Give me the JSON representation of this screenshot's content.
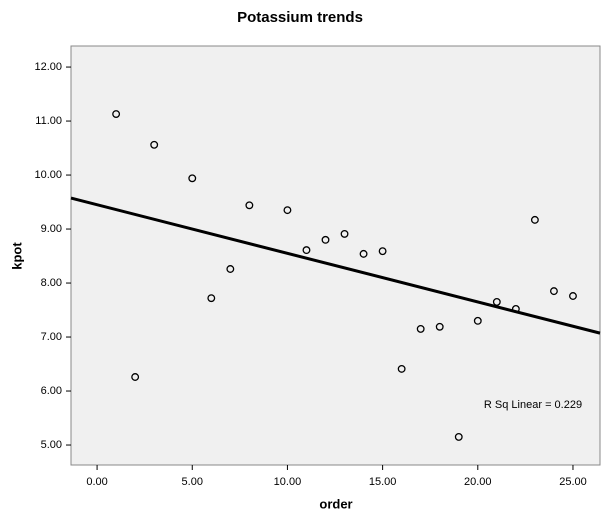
{
  "chart_data": {
    "type": "scatter",
    "title": "Potassium trends",
    "x_label": "order",
    "y_label": "kpot",
    "x": [
      1,
      2,
      3,
      5,
      6,
      7,
      8,
      10,
      11,
      12,
      13,
      14,
      15,
      16,
      17,
      18,
      19,
      20,
      21,
      22,
      23,
      24,
      25
    ],
    "values": [
      11.13,
      6.26,
      10.56,
      9.94,
      7.72,
      8.26,
      9.44,
      9.35,
      8.61,
      8.8,
      8.91,
      8.54,
      8.59,
      6.41,
      7.15,
      7.19,
      5.15,
      7.3,
      7.65,
      7.52,
      9.17,
      7.85,
      7.76
    ],
    "color": "#000000",
    "fit": {
      "slope": -0.09,
      "intercept": 9.45
    },
    "annotation": "R Sq Linear = 0.229",
    "xlim": [
      -1.37,
      26.42
    ],
    "ylim": [
      4.63,
      12.39
    ],
    "xticks": [
      {
        "value": 0,
        "label": "0.00"
      },
      {
        "value": 5,
        "label": "5.00"
      },
      {
        "value": 10,
        "label": "10.00"
      },
      {
        "value": 15,
        "label": "15.00"
      },
      {
        "value": 20,
        "label": "20.00"
      },
      {
        "value": 25,
        "label": "25.00"
      }
    ],
    "yticks": [
      {
        "value": 5,
        "label": "5.00"
      },
      {
        "value": 6,
        "label": "6.00"
      },
      {
        "value": 7,
        "label": "7.00"
      },
      {
        "value": 8,
        "label": "8.00"
      },
      {
        "value": 9,
        "label": "9.00"
      },
      {
        "value": 10,
        "label": "10.00"
      },
      {
        "value": 11,
        "label": "11.00"
      },
      {
        "value": 12,
        "label": "12.00"
      }
    ],
    "grid": false
  }
}
